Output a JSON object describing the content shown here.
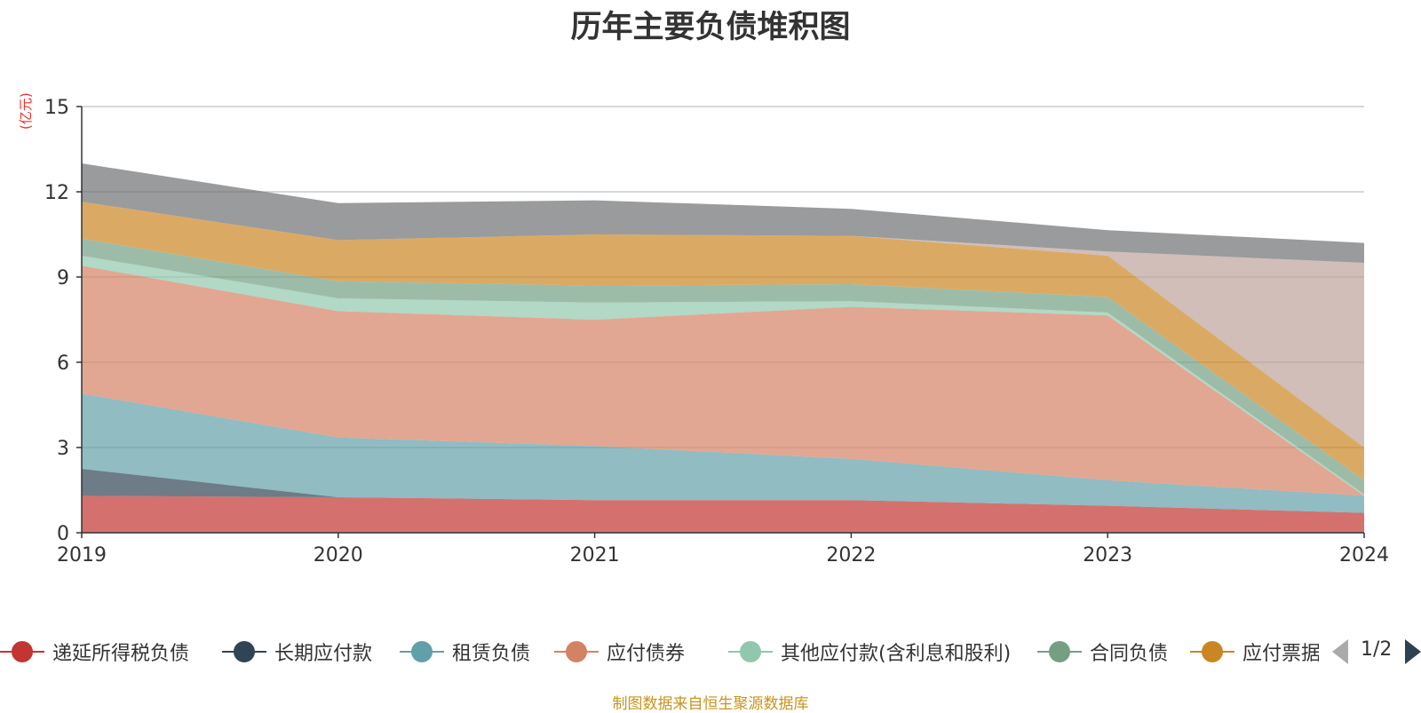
{
  "title": "历年主要负债堆积图",
  "unit_label": "(亿元)",
  "source_note": "制图数据来自恒生聚源数据库",
  "pager": {
    "text": "1/2"
  },
  "chart_data": {
    "type": "area",
    "stacked": true,
    "title": "历年主要负债堆积图",
    "ylabel": "(亿元)",
    "x": [
      "2019",
      "2020",
      "2021",
      "2022",
      "2023",
      "2024"
    ],
    "ylim": [
      0,
      15
    ],
    "yticks": [
      "0",
      "3",
      "6",
      "9",
      "12",
      "15"
    ],
    "grid": true,
    "legend_position": "bottom",
    "series": [
      {
        "name": "递延所得税负债",
        "color": "#c23531",
        "values": [
          1.3,
          1.25,
          1.15,
          1.15,
          0.95,
          0.7
        ]
      },
      {
        "name": "长期应付款",
        "color": "#2f4554",
        "values": [
          0.95,
          0,
          0,
          0,
          0,
          0
        ]
      },
      {
        "name": "租赁负债",
        "color": "#61a0a8",
        "values": [
          2.65,
          2.1,
          1.9,
          1.45,
          0.9,
          0.6
        ]
      },
      {
        "name": "应付债券",
        "color": "#d48265",
        "values": [
          4.5,
          4.45,
          4.45,
          5.35,
          5.8,
          0
        ]
      },
      {
        "name": "其他应付款(含利息和股利)",
        "color": "#91c7ae",
        "values": [
          0.35,
          0.45,
          0.6,
          0.2,
          0.1,
          0.05
        ]
      },
      {
        "name": "合同负债",
        "color": "#749f83",
        "values": [
          0.6,
          0.6,
          0.6,
          0.6,
          0.55,
          0.5
        ]
      },
      {
        "name": "应付票据",
        "color": "#ca8622",
        "values": [
          1.3,
          1.45,
          1.8,
          1.7,
          1.45,
          1.15
        ]
      },
      {
        "name": "",
        "color": "#bda29a",
        "values": [
          0,
          0,
          0,
          0,
          0.15,
          6.5
        ]
      },
      {
        "name": "",
        "color": "#6e7074",
        "values": [
          1.35,
          1.3,
          1.2,
          0.95,
          0.75,
          0.7
        ]
      }
    ]
  }
}
